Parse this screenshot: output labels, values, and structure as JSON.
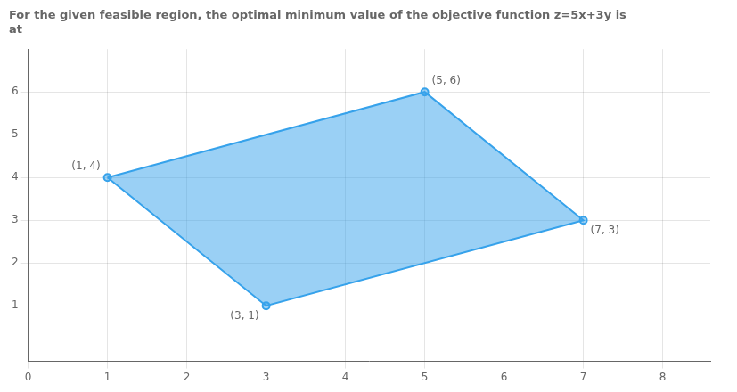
{
  "chart_data": {
    "type": "polygon",
    "title": [
      "For the given feasible region, the optimal minimum value of the objective function z=5x+3y is",
      "at"
    ],
    "x": [
      1,
      5,
      7,
      3
    ],
    "values": [
      4,
      6,
      3,
      1
    ],
    "data_labels": true,
    "value_labels": [
      "(1, 4)",
      "(5, 6)",
      "(7, 3)",
      "(3, 1)"
    ],
    "xlim": [
      0,
      8.6
    ],
    "ylim": [
      -0.3,
      7.0
    ],
    "xticks": [
      0,
      1,
      2,
      3,
      4,
      5,
      6,
      7,
      8
    ],
    "yticks": [
      1,
      2,
      3,
      4,
      5,
      6
    ],
    "grid": true
  }
}
